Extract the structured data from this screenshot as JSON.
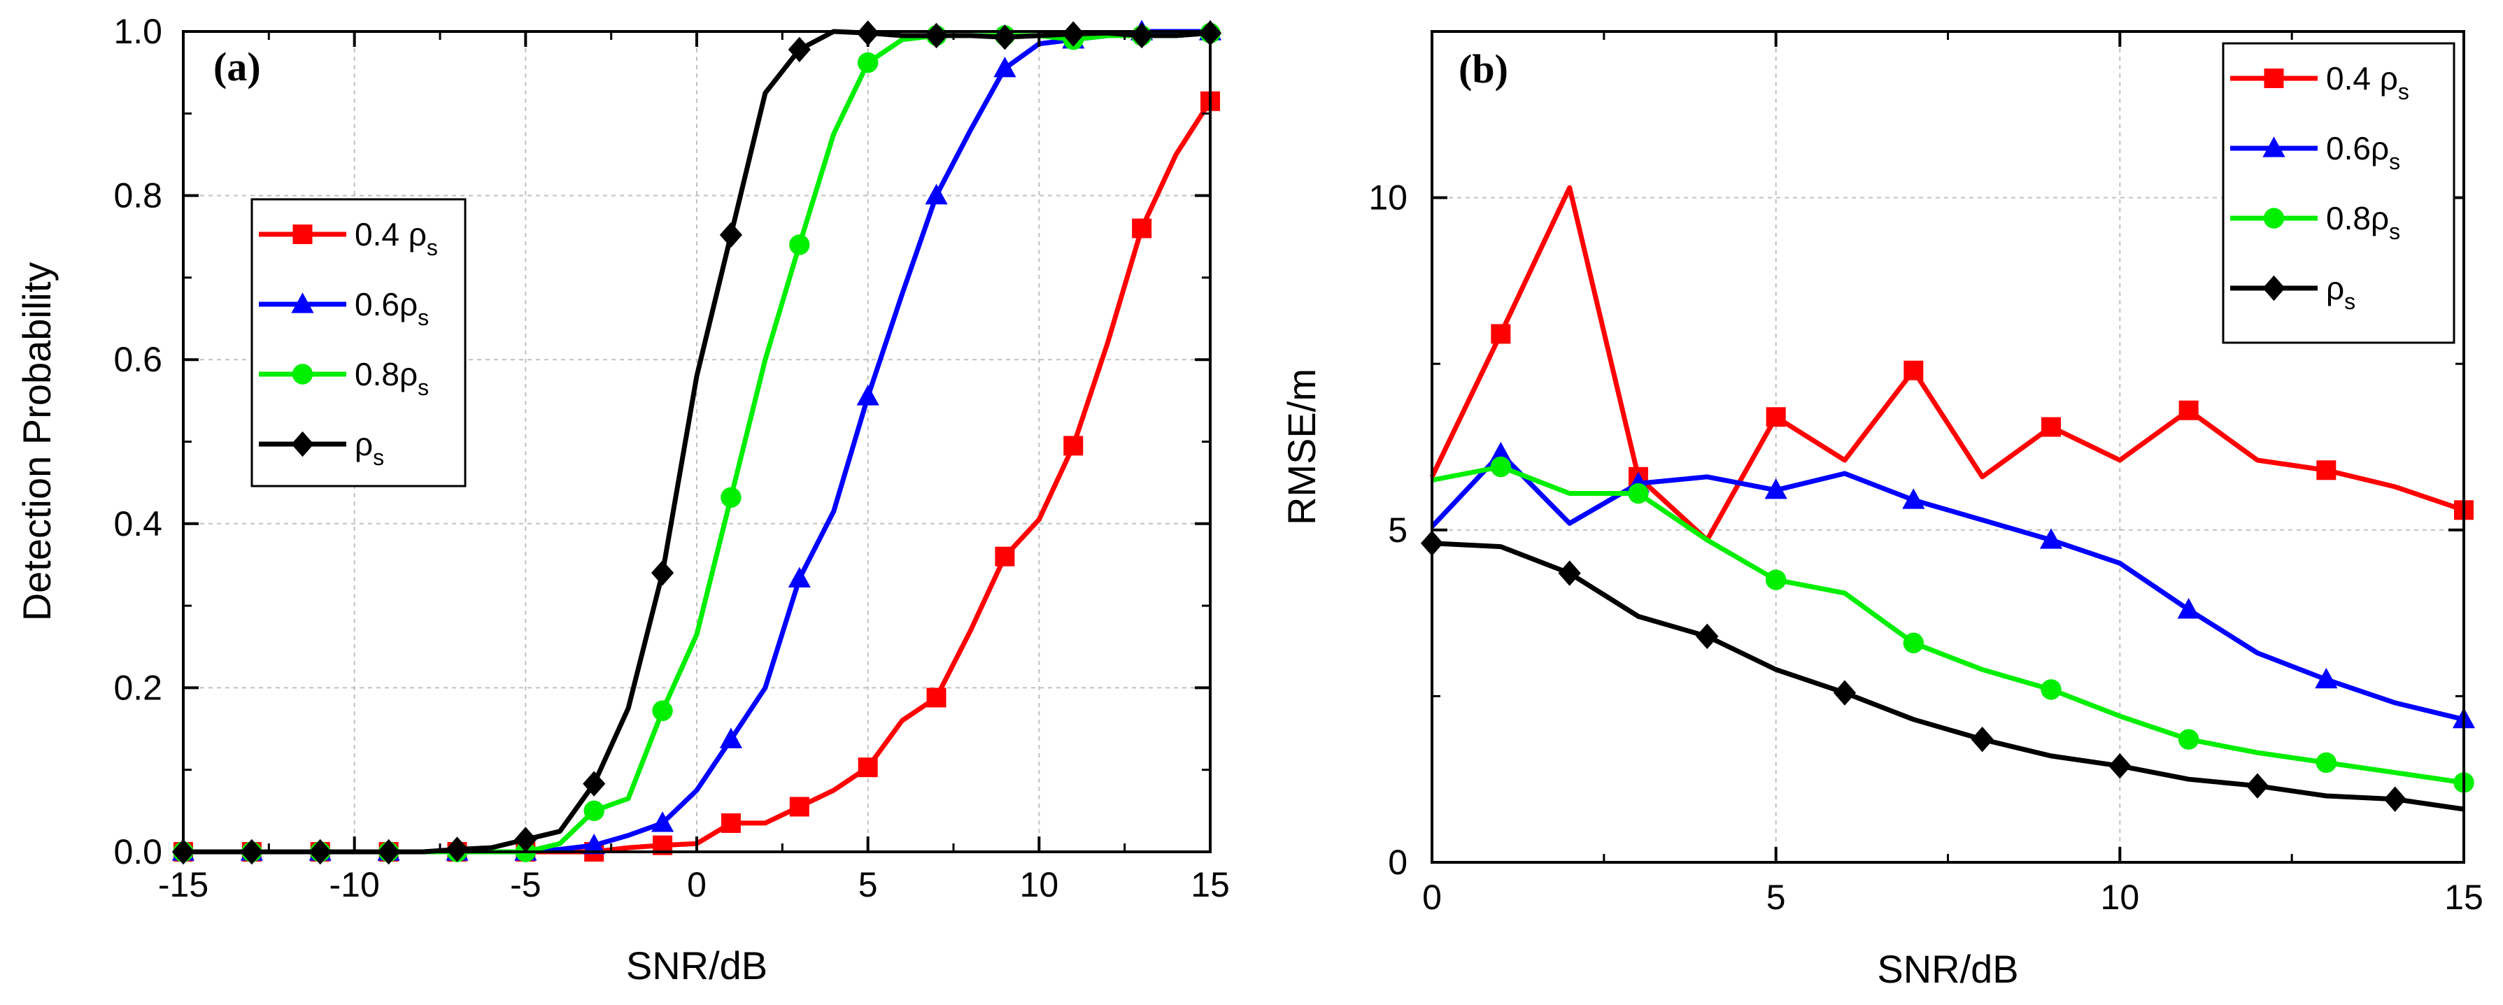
{
  "chart_data": [
    {
      "type": "line",
      "panel_label": "(a)",
      "xlabel": "SNR/dB",
      "ylabel": "Detection Probability",
      "xlim": [
        -15,
        15
      ],
      "ylim": [
        0,
        1
      ],
      "xticks": [
        -15,
        -10,
        -5,
        0,
        5,
        10,
        15
      ],
      "xtick_labels": [
        "-15",
        "-10",
        "-5",
        "0",
        "5",
        "10",
        "15"
      ],
      "yticks": [
        0,
        0.2,
        0.4,
        0.6,
        0.8,
        1.0
      ],
      "ytick_labels": [
        "0.0",
        "0.2",
        "0.4",
        "0.6",
        "0.8",
        "1.0"
      ],
      "grid": true,
      "legend_position": "middle-left",
      "x": [
        -15,
        -14,
        -13,
        -12,
        -11,
        -10,
        -9,
        -8,
        -7,
        -6,
        -5,
        -4,
        -3,
        -2,
        -1,
        0,
        1,
        2,
        3,
        4,
        5,
        6,
        7,
        8,
        9,
        10,
        11,
        12,
        13,
        14,
        15
      ],
      "series": [
        {
          "name": "0.4 ρs",
          "legend_main": "0.4 ρ",
          "legend_sub": "s",
          "color": "#ff0000",
          "marker": "square",
          "values": [
            0,
            0,
            0,
            0,
            0,
            0,
            0,
            0,
            0,
            0,
            0,
            0,
            0,
            0.005,
            0.008,
            0.01,
            0.035,
            0.035,
            0.055,
            0.075,
            0.103,
            0.16,
            0.188,
            0.27,
            0.36,
            0.405,
            0.495,
            0.62,
            0.76,
            0.85,
            0.915
          ]
        },
        {
          "name": "0.6ρs",
          "legend_main": "0.6ρ",
          "legend_sub": "s",
          "color": "#0000ff",
          "marker": "triangle",
          "values": [
            0,
            0,
            0,
            0,
            0,
            0,
            0,
            0,
            0,
            0,
            0,
            0.003,
            0.008,
            0.02,
            0.035,
            0.075,
            0.137,
            0.2,
            0.333,
            0.415,
            0.555,
            0.68,
            0.8,
            0.88,
            0.955,
            0.985,
            0.99,
            0.995,
            1.0,
            1.0,
            1.0
          ]
        },
        {
          "name": "0.8ρs",
          "legend_main": "0.8ρ",
          "legend_sub": "s",
          "color": "#00ee00",
          "marker": "circle",
          "values": [
            0,
            0,
            0,
            0,
            0,
            0,
            0,
            0,
            0,
            0,
            0,
            0.01,
            0.05,
            0.065,
            0.172,
            0.265,
            0.432,
            0.6,
            0.74,
            0.875,
            0.962,
            0.99,
            0.995,
            0.995,
            0.995,
            0.995,
            0.99,
            0.995,
            0.995,
            0.995,
            0.998
          ]
        },
        {
          "name": "ρs",
          "legend_main": "ρ",
          "legend_sub": "s",
          "color": "#000000",
          "marker": "diamond",
          "values": [
            0,
            0,
            0,
            0,
            0,
            0,
            0,
            0,
            0.003,
            0.005,
            0.015,
            0.025,
            0.083,
            0.175,
            0.34,
            0.58,
            0.752,
            0.925,
            0.978,
            1.0,
            0.998,
            0.995,
            0.995,
            0.995,
            0.993,
            0.995,
            0.997,
            0.998,
            0.995,
            0.995,
            0.998
          ]
        }
      ]
    },
    {
      "type": "line",
      "panel_label": "(b)",
      "xlabel": "SNR/dB",
      "ylabel": "RMSE/m",
      "xlim": [
        0,
        15
      ],
      "ylim": [
        0,
        12.5
      ],
      "xticks": [
        0,
        5,
        10,
        15
      ],
      "xtick_labels": [
        "0",
        "5",
        "10",
        "15"
      ],
      "yticks": [
        0,
        5,
        10
      ],
      "ytick_labels": [
        "0",
        "5",
        "10"
      ],
      "grid": true,
      "legend_position": "top-right",
      "x": [
        0,
        1,
        2,
        3,
        4,
        5,
        6,
        7,
        8,
        9,
        10,
        11,
        12,
        13,
        14,
        15
      ],
      "series": [
        {
          "name": "0.4 ρs",
          "legend_main": "0.4 ρ",
          "legend_sub": "s",
          "color": "#ff0000",
          "marker": "square",
          "values": [
            5.8,
            7.95,
            10.15,
            5.8,
            4.85,
            6.7,
            6.05,
            7.4,
            5.8,
            6.55,
            6.05,
            6.8,
            6.05,
            5.9,
            5.65,
            5.3
          ]
        },
        {
          "name": "0.6ρs",
          "legend_main": "0.6ρ",
          "legend_sub": "s",
          "color": "#0000ff",
          "marker": "triangle",
          "values": [
            5.05,
            6.15,
            5.1,
            5.7,
            5.8,
            5.6,
            5.85,
            5.45,
            5.15,
            4.85,
            4.5,
            3.8,
            3.15,
            2.75,
            2.4,
            2.15
          ]
        },
        {
          "name": "0.8ρs",
          "legend_main": "0.8ρ",
          "legend_sub": "s",
          "color": "#00ee00",
          "marker": "circle",
          "values": [
            5.75,
            5.95,
            5.55,
            5.55,
            4.85,
            4.25,
            4.05,
            3.3,
            2.9,
            2.6,
            2.2,
            1.85,
            1.65,
            1.5,
            1.35,
            1.2
          ]
        },
        {
          "name": "ρs",
          "legend_main": "ρ",
          "legend_sub": "s",
          "color": "#000000",
          "marker": "diamond",
          "values": [
            4.8,
            4.75,
            4.35,
            3.7,
            3.4,
            2.9,
            2.55,
            2.15,
            1.85,
            1.6,
            1.45,
            1.25,
            1.15,
            1.0,
            0.95,
            0.8
          ]
        }
      ]
    }
  ]
}
